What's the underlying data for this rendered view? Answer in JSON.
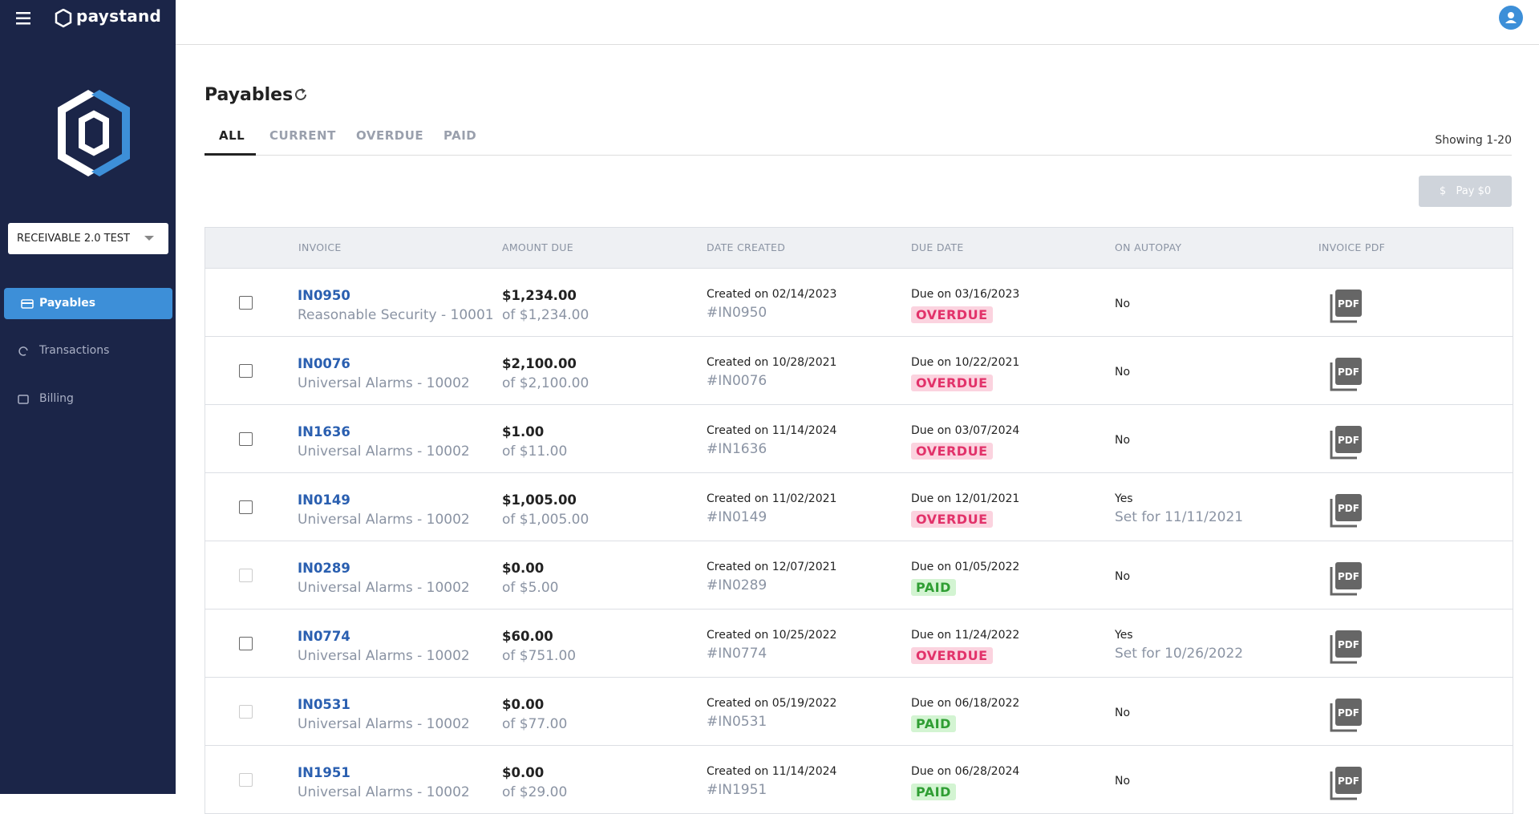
{
  "sidebar": {
    "brand": "paystand",
    "account": "RECEIVABLE 2.0 TEST",
    "nav": [
      "Payables",
      "Transactions",
      "Billing"
    ]
  },
  "page": {
    "title": "Payables",
    "tabs": [
      "ALL",
      "CURRENT",
      "OVERDUE",
      "PAID"
    ],
    "showing": "Showing 1-20",
    "pay_button": "Pay $0"
  },
  "table": {
    "columns": [
      "INVOICE",
      "AMOUNT DUE",
      "DATE CREATED",
      "DUE DATE",
      "ON AUTOPAY",
      "INVOICE PDF"
    ],
    "rows": [
      {
        "invoice": "IN0950",
        "customer": "Reasonable Security - 10001",
        "amount": "$1,234.00",
        "total": "of $1,234.00",
        "created": "Created on 02/14/2023",
        "ref": "#IN0950",
        "due": "Due on 03/16/2023",
        "status": "OVERDUE",
        "autopay": "No"
      },
      {
        "invoice": "IN0076",
        "customer": "Universal Alarms - 10002",
        "amount": "$2,100.00",
        "total": "of $2,100.00",
        "created": "Created on 10/28/2021",
        "ref": "#IN0076",
        "due": "Due on 10/22/2021",
        "status": "OVERDUE",
        "autopay": "No"
      },
      {
        "invoice": "IN1636",
        "customer": "Universal Alarms - 10002",
        "amount": "$1.00",
        "total": "of $11.00",
        "created": "Created on 11/14/2024",
        "ref": "#IN1636",
        "due": "Due on 03/07/2024",
        "status": "OVERDUE",
        "autopay": "No"
      },
      {
        "invoice": "IN0149",
        "customer": "Universal Alarms - 10002",
        "amount": "$1,005.00",
        "total": "of $1,005.00",
        "created": "Created on 11/02/2021",
        "ref": "#IN0149",
        "due": "Due on 12/01/2021",
        "status": "OVERDUE",
        "autopay": "Yes",
        "autopay_date": "Set for 11/11/2021"
      },
      {
        "invoice": "IN0289",
        "customer": "Universal Alarms - 10002",
        "amount": "$0.00",
        "total": "of $5.00",
        "created": "Created on 12/07/2021",
        "ref": "#IN0289",
        "due": "Due on 01/05/2022",
        "status": "PAID",
        "autopay": "No"
      },
      {
        "invoice": "IN0774",
        "customer": "Universal Alarms - 10002",
        "amount": "$60.00",
        "total": "of $751.00",
        "created": "Created on 10/25/2022",
        "ref": "#IN0774",
        "due": "Due on 11/24/2022",
        "status": "OVERDUE",
        "autopay": "Yes",
        "autopay_date": "Set for 10/26/2022"
      },
      {
        "invoice": "IN0531",
        "customer": "Universal Alarms - 10002",
        "amount": "$0.00",
        "total": "of $77.00",
        "created": "Created on 05/19/2022",
        "ref": "#IN0531",
        "due": "Due on 06/18/2022",
        "status": "PAID",
        "autopay": "No"
      },
      {
        "invoice": "IN1951",
        "customer": "Universal Alarms - 10002",
        "amount": "$0.00",
        "total": "of $29.00",
        "created": "Created on 11/14/2024",
        "ref": "#IN1951",
        "due": "Due on 06/28/2024",
        "status": "PAID",
        "autopay": "No"
      }
    ]
  }
}
